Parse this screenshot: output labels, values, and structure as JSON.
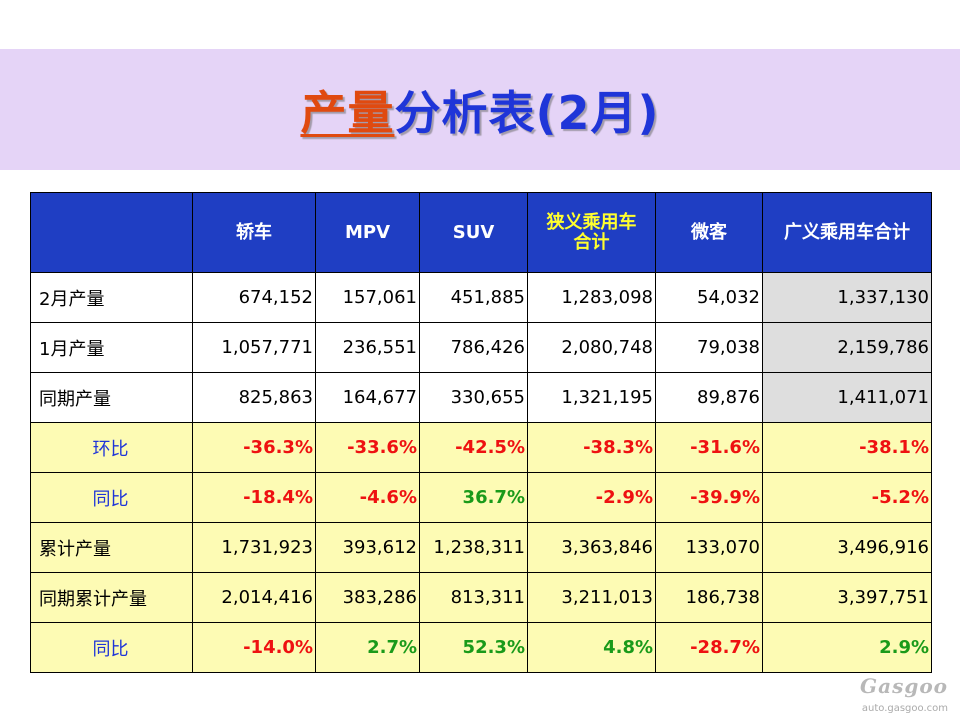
{
  "title": {
    "highlight": "产量",
    "rest": "分析表(2月)"
  },
  "table": {
    "headers": [
      "",
      "轿车",
      "MPV",
      "SUV",
      "狭义乘用车合计",
      "微客",
      "广义乘用车合计"
    ],
    "rows": [
      {
        "label": "2月产量",
        "values": [
          "674,152",
          "157,061",
          "451,885",
          "1,283,098",
          "54,032",
          "1,337,130"
        ]
      },
      {
        "label": "1月产量",
        "values": [
          "1,057,771",
          "236,551",
          "786,426",
          "2,080,748",
          "79,038",
          "2,159,786"
        ]
      },
      {
        "label": "同期产量",
        "values": [
          "825,863",
          "164,677",
          "330,655",
          "1,321,195",
          "89,876",
          "1,411,071"
        ]
      },
      {
        "label": "环比",
        "values": [
          "-36.3%",
          "-33.6%",
          "-42.5%",
          "-38.3%",
          "-31.6%",
          "-38.1%"
        ]
      },
      {
        "label": "同比",
        "values": [
          "-18.4%",
          "-4.6%",
          "36.7%",
          "-2.9%",
          "-39.9%",
          "-5.2%"
        ]
      },
      {
        "label": "累计产量",
        "values": [
          "1,731,923",
          "393,612",
          "1,238,311",
          "3,363,846",
          "133,070",
          "3,496,916"
        ]
      },
      {
        "label": "同期累计产量",
        "values": [
          "2,014,416",
          "383,286",
          "813,311",
          "3,211,013",
          "186,738",
          "3,397,751"
        ]
      },
      {
        "label": "同比",
        "values": [
          "-14.0%",
          "2.7%",
          "52.3%",
          "4.8%",
          "-28.7%",
          "2.9%"
        ]
      }
    ]
  },
  "watermark": {
    "logo": "Gasgoo",
    "url": "auto.gasgoo.com"
  },
  "colors": {
    "header_bg": "#1f3ec3",
    "highlight_row_bg": "#fdfbb4",
    "negative": "#ee1111",
    "positive": "#1a9a1a",
    "label_blue": "#1f35d8",
    "banner_bg": "#e5d4f7"
  }
}
